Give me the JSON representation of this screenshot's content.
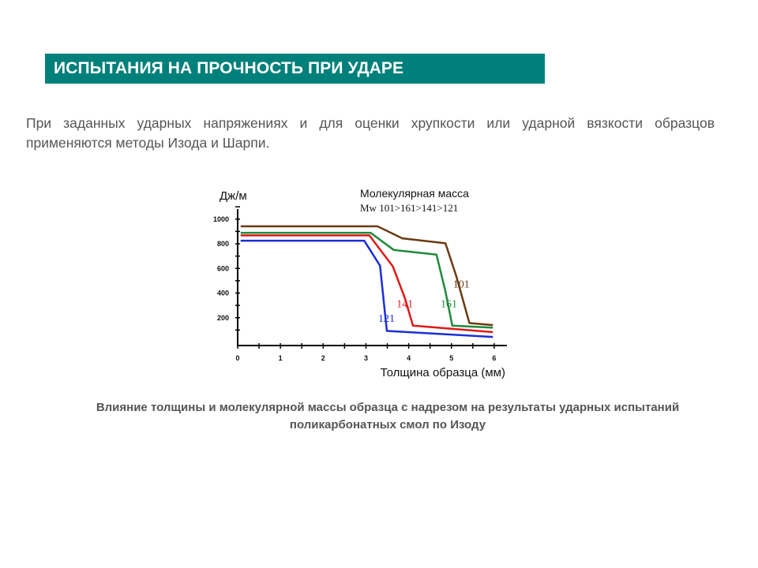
{
  "header": {
    "title": "ИСПЫТАНИЯ НА ПРОЧНОСТЬ ПРИ УДАРЕ"
  },
  "intro": {
    "text": "При заданных ударных напряжениях и для оценки хрупкости или ударной вязкости образцов применяются методы Изода и Шарпи."
  },
  "caption": {
    "text": "Влияние толщины и молекулярной массы образца с надрезом на результаты ударных испытаний поликарбонатных смол по  Изоду"
  },
  "chart_data": {
    "type": "line",
    "title": "",
    "legend_title": "Молекулярная масса",
    "legend_subtitle": "Mw  101>161>141>121",
    "xlabel": "Толщина образца (мм)",
    "ylabel": "Дж/м",
    "xlim": [
      0,
      6
    ],
    "ylim": [
      0,
      1100
    ],
    "xticks": [
      "0",
      "1",
      "2",
      "3",
      "4",
      "5",
      "6"
    ],
    "yticks": [
      "200",
      "400",
      "600",
      "800",
      "1000"
    ],
    "series": [
      {
        "name": "101",
        "color": "#6b3a12",
        "label_at": [
          5.23,
          445
        ],
        "x": [
          0.07,
          3.27,
          3.85,
          4.86,
          5.11,
          5.42,
          5.97
        ],
        "y": [
          942,
          942,
          844,
          804,
          541,
          157,
          140
        ]
      },
      {
        "name": "161",
        "color": "#1f8a3a",
        "label_at": [
          4.94,
          285
        ],
        "x": [
          0.07,
          3.11,
          3.65,
          4.65,
          4.86,
          5.02,
          5.97
        ],
        "y": [
          889,
          889,
          750,
          712,
          413,
          136,
          119
        ]
      },
      {
        "name": "141",
        "color": "#e01818",
        "label_at": [
          3.91,
          285
        ],
        "x": [
          0.07,
          3.08,
          3.63,
          3.91,
          4.1,
          5.97
        ],
        "y": [
          868,
          868,
          616,
          360,
          136,
          83
        ]
      },
      {
        "name": "121",
        "color": "#1a2fd6",
        "label_at": [
          3.48,
          168
        ],
        "x": [
          0.07,
          2.96,
          3.33,
          3.45,
          3.49,
          5.97
        ],
        "y": [
          825,
          825,
          622,
          221,
          93,
          44
        ]
      }
    ]
  }
}
